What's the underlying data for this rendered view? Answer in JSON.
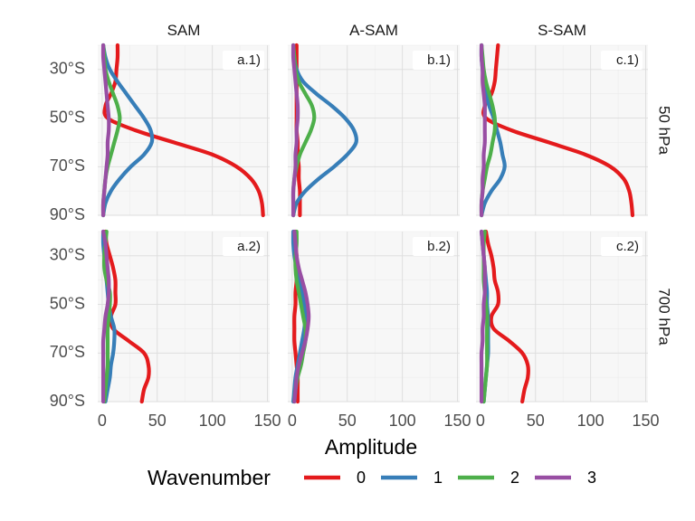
{
  "chart_data": {
    "type": "line",
    "xlabel": "Amplitude",
    "x_ticks": [
      0,
      50,
      100,
      150
    ],
    "xlim": [
      -4,
      152
    ],
    "ylim": [
      -90,
      -20
    ],
    "y_ticks": [
      -30,
      -50,
      -70,
      -90
    ],
    "y_tick_labels": [
      "30°S",
      "50°S",
      "70°S",
      "90°S"
    ],
    "columns": [
      "SAM",
      "A-SAM",
      "S-SAM"
    ],
    "rows": [
      "50 hPa",
      "700 hPa"
    ],
    "legend": {
      "title": "Wavenumber",
      "position": "bottom",
      "entries": [
        "0",
        "1",
        "2",
        "3"
      ]
    },
    "colors": {
      "0": "#e41a1c",
      "1": "#377eb8",
      "2": "#4daf4a",
      "3": "#984ea3"
    },
    "latitudes": [
      -20,
      -25,
      -30,
      -35,
      -40,
      -45,
      -50,
      -55,
      -60,
      -65,
      -70,
      -75,
      -80,
      -85,
      -90
    ],
    "panels": [
      {
        "tag": "a.1)",
        "column": "SAM",
        "row": "50 hPa",
        "series": [
          {
            "wavenumber": "0",
            "values": [
              14,
              14,
              13,
              12,
              8,
              3,
              5,
              30,
              65,
              100,
              122,
              135,
              142,
              145,
              146
            ]
          },
          {
            "wavenumber": "1",
            "values": [
              1,
              3,
              7,
              14,
              22,
              30,
              38,
              44,
              45,
              38,
              26,
              16,
              8,
              3,
              1
            ]
          },
          {
            "wavenumber": "2",
            "values": [
              1,
              2,
              3,
              6,
              10,
              14,
              16,
              14,
              11,
              8,
              5,
              3,
              2,
              1,
              1
            ]
          },
          {
            "wavenumber": "3",
            "values": [
              1,
              1,
              2,
              3,
              4,
              5,
              6,
              6,
              5,
              5,
              4,
              3,
              2,
              1,
              1
            ]
          }
        ]
      },
      {
        "tag": "b.1)",
        "column": "A-SAM",
        "row": "50 hPa",
        "series": [
          {
            "wavenumber": "0",
            "values": [
              4,
              4,
              4,
              4,
              4,
              4,
              4,
              4,
              5,
              5,
              6,
              6,
              7,
              7,
              7
            ]
          },
          {
            "wavenumber": "1",
            "values": [
              1,
              2,
              4,
              10,
              22,
              36,
              48,
              56,
              58,
              50,
              38,
              24,
              12,
              4,
              1
            ]
          },
          {
            "wavenumber": "2",
            "values": [
              1,
              2,
              3,
              6,
              12,
              18,
              20,
              17,
              12,
              7,
              4,
              2,
              1,
              1,
              1
            ]
          },
          {
            "wavenumber": "3",
            "values": [
              1,
              1,
              2,
              3,
              4,
              5,
              5,
              4,
              4,
              3,
              3,
              2,
              1,
              1,
              1
            ]
          }
        ]
      },
      {
        "tag": "c.1)",
        "column": "S-SAM",
        "row": "50 hPa",
        "series": [
          {
            "wavenumber": "0",
            "values": [
              16,
              15,
              14,
              13,
              10,
              4,
              5,
              28,
              62,
              95,
              118,
              130,
              135,
              137,
              138
            ]
          },
          {
            "wavenumber": "1",
            "values": [
              1,
              1,
              2,
              3,
              5,
              8,
              12,
              15,
              18,
              20,
              22,
              18,
              10,
              4,
              1
            ]
          },
          {
            "wavenumber": "2",
            "values": [
              1,
              2,
              3,
              5,
              8,
              11,
              13,
              13,
              11,
              9,
              6,
              4,
              2,
              1,
              1
            ]
          },
          {
            "wavenumber": "3",
            "values": [
              1,
              1,
              2,
              2,
              3,
              4,
              4,
              4,
              4,
              3,
              3,
              2,
              2,
              1,
              1
            ]
          }
        ]
      },
      {
        "tag": "a.2)",
        "column": "SAM",
        "row": "700 hPa",
        "series": [
          {
            "wavenumber": "0",
            "values": [
              3,
              4,
              7,
              10,
              12,
              12,
              12,
              8,
              10,
              24,
              38,
              42,
              42,
              38,
              36
            ]
          },
          {
            "wavenumber": "1",
            "values": [
              1,
              1,
              2,
              3,
              4,
              5,
              6,
              8,
              11,
              11,
              10,
              8,
              7,
              5,
              3
            ]
          },
          {
            "wavenumber": "2",
            "values": [
              4,
              3,
              2,
              2,
              4,
              7,
              7,
              6,
              5,
              5,
              5,
              5,
              4,
              3,
              2
            ]
          },
          {
            "wavenumber": "3",
            "values": [
              1,
              3,
              4,
              5,
              6,
              6,
              5,
              3,
              2,
              1,
              1,
              1,
              1,
              1,
              1
            ]
          }
        ]
      },
      {
        "tag": "b.2)",
        "column": "A-SAM",
        "row": "700 hPa",
        "series": [
          {
            "wavenumber": "0",
            "values": [
              3,
              3,
              4,
              4,
              4,
              3,
              3,
              2,
              2,
              2,
              3,
              4,
              5,
              5,
              5
            ]
          },
          {
            "wavenumber": "1",
            "values": [
              1,
              1,
              2,
              4,
              6,
              9,
              11,
              12,
              11,
              9,
              7,
              5,
              3,
              2,
              1
            ]
          },
          {
            "wavenumber": "2",
            "values": [
              4,
              4,
              3,
              3,
              4,
              6,
              8,
              10,
              12,
              12,
              10,
              8,
              5,
              3,
              2
            ]
          },
          {
            "wavenumber": "3",
            "values": [
              2,
              3,
              4,
              6,
              9,
              12,
              14,
              15,
              14,
              12,
              9,
              6,
              4,
              3,
              2
            ]
          }
        ]
      },
      {
        "tag": "c.2)",
        "column": "S-SAM",
        "row": "700 hPa",
        "series": [
          {
            "wavenumber": "0",
            "values": [
              5,
              7,
              10,
              12,
              13,
              16,
              16,
              10,
              12,
              26,
              38,
              43,
              43,
              40,
              38
            ]
          },
          {
            "wavenumber": "1",
            "values": [
              1,
              2,
              3,
              4,
              5,
              6,
              6,
              7,
              7,
              7,
              7,
              6,
              5,
              4,
              3
            ]
          },
          {
            "wavenumber": "2",
            "values": [
              4,
              3,
              3,
              3,
              3,
              4,
              5,
              6,
              6,
              6,
              6,
              6,
              5,
              4,
              3
            ]
          },
          {
            "wavenumber": "3",
            "values": [
              1,
              2,
              3,
              4,
              4,
              4,
              3,
              3,
              2,
              2,
              1,
              1,
              1,
              1,
              1
            ]
          }
        ]
      }
    ]
  }
}
